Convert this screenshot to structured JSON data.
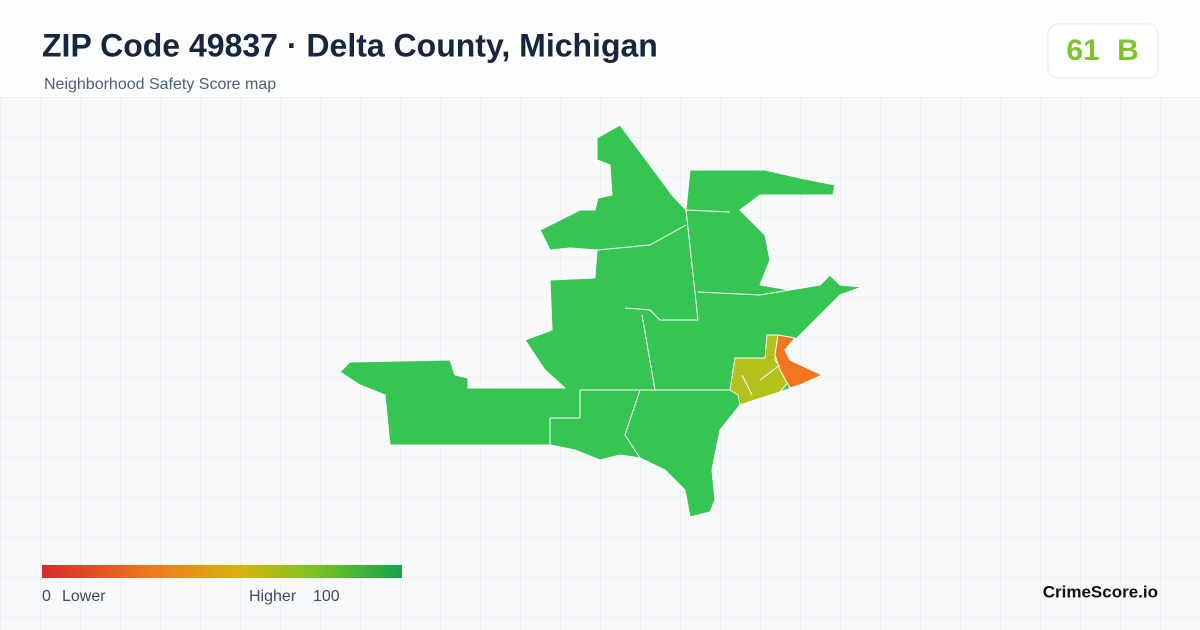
{
  "header": {
    "title": "ZIP Code 49837 · Delta County, Michigan",
    "subtitle": "Neighborhood Safety Score map"
  },
  "score": {
    "value": "61",
    "grade": "B"
  },
  "legend": {
    "min": "0",
    "min_label": "Lower",
    "max_label": "Higher",
    "max": "100"
  },
  "brand": "CrimeScore.io"
}
